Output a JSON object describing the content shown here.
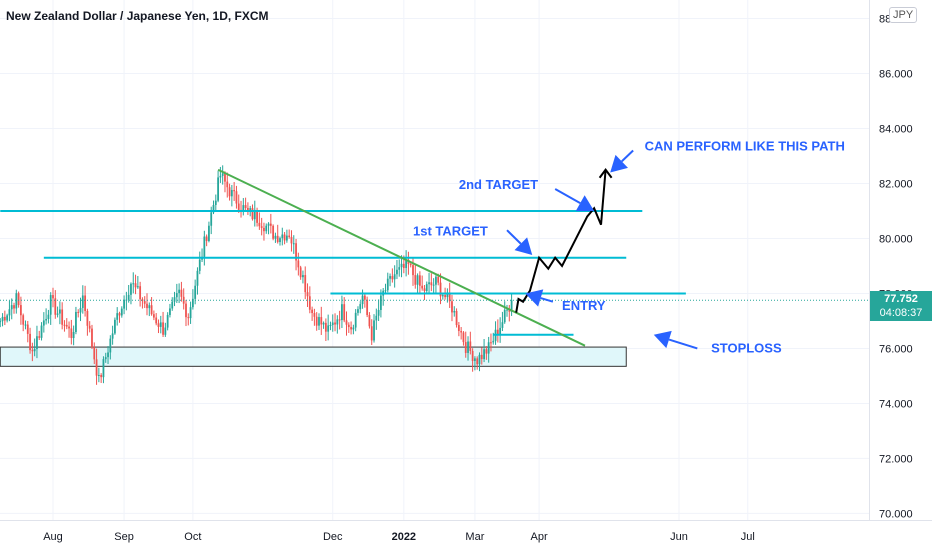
{
  "header": {
    "title": "New Zealand Dollar / Japanese Yen, 1D, FXCM",
    "currency": "JPY"
  },
  "price_tag": {
    "value": "77.752",
    "countdown": "04:08:37"
  },
  "colors": {
    "up": "#26a69a",
    "down": "#ef5350",
    "level": "#00bcd4",
    "trend": "#4caf50",
    "annotation": "#2962ff",
    "path": "#000000",
    "zone_fill": "#e0f7fa"
  },
  "chart_data": {
    "type": "candlestick",
    "title": "New Zealand Dollar / Japanese Yen, 1D, FXCM",
    "ylim": [
      69.6,
      88.2
    ],
    "y_ticks": [
      "70.000",
      "72.000",
      "74.000",
      "76.000",
      "78.000",
      "80.000",
      "82.000",
      "84.000",
      "86.000",
      "88.000"
    ],
    "x_labels": [
      "Aug",
      "Sep",
      "Oct",
      "Dec",
      "2022",
      "Mar",
      "Apr",
      "Jun",
      "Jul"
    ],
    "x_label_days": [
      0,
      31,
      61,
      122,
      153,
      184,
      212,
      273,
      303
    ],
    "current_price": 77.752,
    "levels": [
      {
        "price": 81.0,
        "from_day": -23,
        "to_day": 257
      },
      {
        "price": 79.3,
        "from_day": -4,
        "to_day": 250
      },
      {
        "price": 78.0,
        "from_day": 121,
        "to_day": 276
      },
      {
        "price": 76.5,
        "from_day": 192,
        "to_day": 227
      }
    ],
    "trendline": {
      "from": {
        "day": 72,
        "price": 82.5
      },
      "to": {
        "day": 232,
        "price": 76.1
      }
    },
    "support_zone": {
      "from_day": -23,
      "to_day": 250,
      "top": 76.05,
      "bottom": 75.35
    },
    "projected_path": [
      {
        "day": 202,
        "price": 77.3
      },
      {
        "day": 203,
        "price": 77.8
      },
      {
        "day": 205,
        "price": 77.7
      },
      {
        "day": 208,
        "price": 78.1
      },
      {
        "day": 212,
        "price": 79.3
      },
      {
        "day": 216,
        "price": 78.9
      },
      {
        "day": 219,
        "price": 79.3
      },
      {
        "day": 222,
        "price": 79.0
      },
      {
        "day": 233,
        "price": 80.8
      },
      {
        "day": 236,
        "price": 81.1
      },
      {
        "day": 239,
        "price": 80.5
      },
      {
        "day": 241,
        "price": 82.5
      }
    ],
    "annotations": [
      {
        "text": "CAN PERFORM LIKE THIS PATH",
        "day": 258,
        "price": 83.2
      },
      {
        "text": "2nd TARGET",
        "day": 177,
        "price": 81.8
      },
      {
        "text": "1st TARGET",
        "day": 157,
        "price": 80.1
      },
      {
        "text": "ENTRY",
        "day": 222,
        "price": 77.4
      },
      {
        "text": "STOPLOSS",
        "day": 287,
        "price": 75.85
      }
    ],
    "arrows": [
      {
        "from": {
          "day": 253,
          "price": 83.2
        },
        "to": {
          "day": 243,
          "price": 82.4
        }
      },
      {
        "from": {
          "day": 219,
          "price": 81.8
        },
        "to": {
          "day": 236,
          "price": 81.0
        }
      },
      {
        "from": {
          "day": 198,
          "price": 80.3
        },
        "to": {
          "day": 209,
          "price": 79.4
        }
      },
      {
        "from": {
          "day": 218,
          "price": 77.7
        },
        "to": {
          "day": 206,
          "price": 78.0
        }
      },
      {
        "from": {
          "day": 281,
          "price": 76.0
        },
        "to": {
          "day": 262,
          "price": 76.5
        }
      }
    ],
    "pivots": [
      {
        "day": -23,
        "price": 77.0
      },
      {
        "day": -16,
        "price": 77.8
      },
      {
        "day": -9,
        "price": 75.9
      },
      {
        "day": -1,
        "price": 77.7
      },
      {
        "day": 8,
        "price": 76.5
      },
      {
        "day": 13,
        "price": 77.9
      },
      {
        "day": 20,
        "price": 74.8
      },
      {
        "day": 28,
        "price": 77.2
      },
      {
        "day": 34,
        "price": 78.4
      },
      {
        "day": 41,
        "price": 77.5
      },
      {
        "day": 48,
        "price": 76.7
      },
      {
        "day": 55,
        "price": 78.0
      },
      {
        "day": 59,
        "price": 77.2
      },
      {
        "day": 64,
        "price": 79.1
      },
      {
        "day": 69,
        "price": 80.9
      },
      {
        "day": 73,
        "price": 82.3
      },
      {
        "day": 78,
        "price": 81.6
      },
      {
        "day": 84,
        "price": 81.0
      },
      {
        "day": 90,
        "price": 80.7
      },
      {
        "day": 97,
        "price": 80.1
      },
      {
        "day": 103,
        "price": 80.2
      },
      {
        "day": 109,
        "price": 78.6
      },
      {
        "day": 113,
        "price": 77.3
      },
      {
        "day": 120,
        "price": 76.6
      },
      {
        "day": 126,
        "price": 77.4
      },
      {
        "day": 130,
        "price": 76.8
      },
      {
        "day": 135,
        "price": 77.9
      },
      {
        "day": 139,
        "price": 76.5
      },
      {
        "day": 144,
        "price": 78.0
      },
      {
        "day": 149,
        "price": 78.7
      },
      {
        "day": 155,
        "price": 79.0
      },
      {
        "day": 161,
        "price": 78.1
      },
      {
        "day": 167,
        "price": 78.4
      },
      {
        "day": 174,
        "price": 77.5
      },
      {
        "day": 180,
        "price": 76.1
      },
      {
        "day": 185,
        "price": 75.6
      },
      {
        "day": 190,
        "price": 76.0
      },
      {
        "day": 196,
        "price": 77.0
      },
      {
        "day": 200,
        "price": 77.75
      }
    ]
  }
}
